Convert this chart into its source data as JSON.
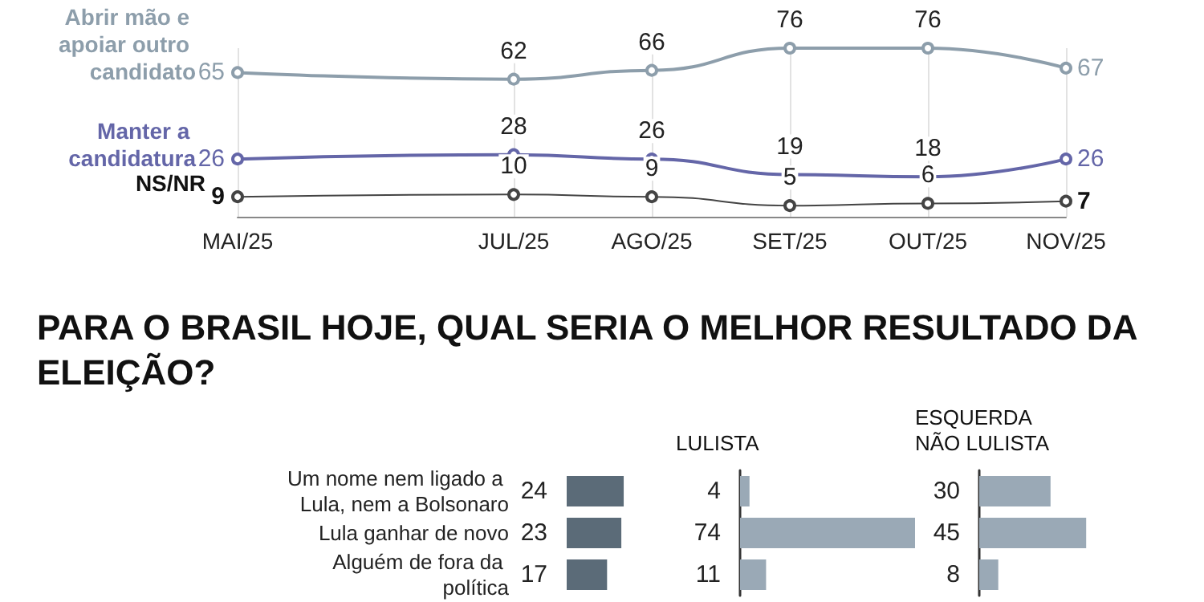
{
  "chart_data": [
    {
      "type": "line",
      "categories": [
        "MAI/25",
        null,
        "JUL/25",
        "AGO/25",
        "SET/25",
        "OUT/25",
        "NOV/25"
      ],
      "series": [
        {
          "name": "Abrir mão e apoiar outro candidato",
          "color": "#8d9eab",
          "values": [
            65,
            null,
            62,
            66,
            76,
            76,
            67
          ]
        },
        {
          "name": "Manter a candidatura",
          "color": "#6466a8",
          "values": [
            26,
            null,
            28,
            26,
            19,
            18,
            26
          ]
        },
        {
          "name": "NS/NR",
          "color": "#444444",
          "values": [
            9,
            null,
            10,
            9,
            5,
            6,
            7
          ]
        }
      ],
      "data_labels": true,
      "tick_labels": "x",
      "grid": "x",
      "marker": "circle"
    },
    {
      "type": "bar",
      "orientation": "horizontal",
      "title": "PARA O BRASIL HOJE, QUAL SERIA O MELHOR RESULTADO DA ELEIÇÃO?",
      "categories": [
        "Um nome nem ligado a Lula, nem a Bolsonaro",
        "Lula ganhar de novo",
        "Alguém de fora da política"
      ],
      "values": [
        24,
        23,
        17
      ],
      "color": "#5b6b78",
      "data_labels": true,
      "tick_labels": "y"
    },
    {
      "type": "bar",
      "orientation": "horizontal",
      "title": "LULISTA",
      "categories": [
        null,
        null,
        null
      ],
      "values": [
        4,
        74,
        11
      ],
      "color": "#9aa9b6",
      "data_labels": true,
      "tick_labels": false
    },
    {
      "type": "bar",
      "orientation": "horizontal",
      "title": "ESQUERDA NÃO LULISTA",
      "categories": [
        null,
        null,
        null
      ],
      "values": [
        30,
        45,
        8
      ],
      "color": "#9aa9b6",
      "data_labels": true,
      "tick_labels": false
    }
  ]
}
